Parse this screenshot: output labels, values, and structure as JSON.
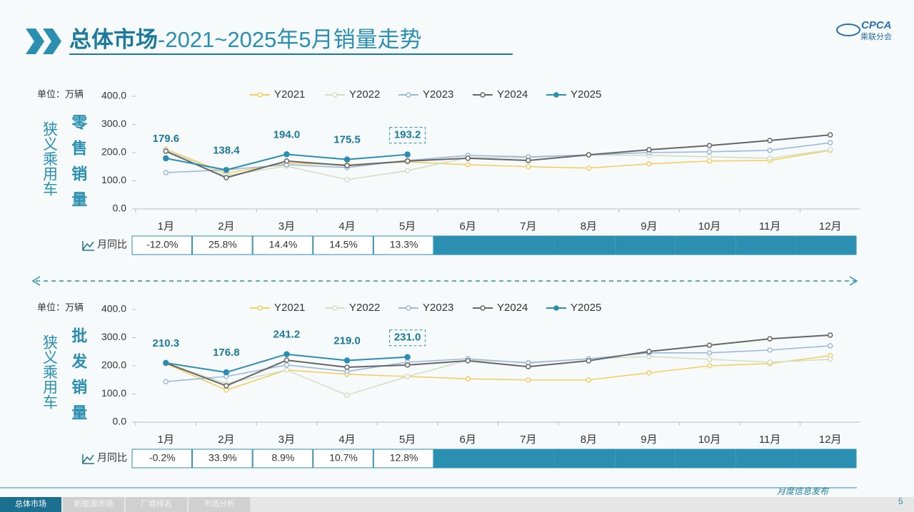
{
  "header": {
    "title_main": "总体市场",
    "title_rest": "-2021~2025年5月销量走势",
    "logo": "CPCA",
    "logo_sub": "乘联分会"
  },
  "chart_data": [
    {
      "type": "line",
      "unit_label": "单位：万辆",
      "side_label": "狭义乘用车",
      "metric_label": "零售销量",
      "categories": [
        "1月",
        "2月",
        "3月",
        "4月",
        "5月",
        "6月",
        "7月",
        "8月",
        "9月",
        "10月",
        "11月",
        "12月"
      ],
      "ylim": [
        0,
        400
      ],
      "yticks": [
        {
          "value": 0,
          "label": "0.0"
        },
        {
          "value": 100,
          "label": "100.0"
        },
        {
          "value": 200,
          "label": "200.0"
        },
        {
          "value": 300,
          "label": "300.0"
        },
        {
          "value": 400,
          "label": "400.0"
        }
      ],
      "series": [
        {
          "name": "Y2021",
          "color": "#f3cf63",
          "values": [
            212,
            127,
            162,
            157,
            167,
            157,
            150,
            145,
            160,
            170,
            172,
            208
          ]
        },
        {
          "name": "Y2022",
          "color": "#d3dfc4",
          "values": [
            210,
            119,
            152,
            104,
            136,
            182,
            182,
            192,
            190,
            185,
            180,
            210
          ]
        },
        {
          "name": "Y2023",
          "color": "#9db8dc",
          "values": [
            129,
            139,
            157,
            147,
            172,
            190,
            185,
            192,
            200,
            203,
            208,
            235
          ]
        },
        {
          "name": "Y2024",
          "color": "#666666",
          "values": [
            205,
            111,
            170,
            154,
            170,
            180,
            172,
            192,
            210,
            225,
            243,
            263
          ]
        },
        {
          "name": "Y2025",
          "color": "#2b8db0",
          "values": [
            179.6,
            138.4,
            194.0,
            175.5,
            193.2,
            null,
            null,
            null,
            null,
            null,
            null,
            null
          ],
          "value_labels": [
            "179.6",
            "138.4",
            "194.0",
            "175.5",
            "193.2",
            null,
            null,
            null,
            null,
            null,
            null,
            null
          ]
        }
      ],
      "yoy_label": "月同比",
      "yoy": [
        "-12.0%",
        "25.8%",
        "14.4%",
        "14.5%",
        "13.3%"
      ]
    },
    {
      "type": "line",
      "unit_label": "单位：万辆",
      "side_label": "狭义乘用车",
      "metric_label": "批发销量",
      "categories": [
        "1月",
        "2月",
        "3月",
        "4月",
        "5月",
        "6月",
        "7月",
        "8月",
        "9月",
        "10月",
        "11月",
        "12月"
      ],
      "ylim": [
        0,
        400
      ],
      "yticks": [
        {
          "value": 0,
          "label": "0.0"
        },
        {
          "value": 100,
          "label": "100.0"
        },
        {
          "value": 200,
          "label": "200.0"
        },
        {
          "value": 300,
          "label": "300.0"
        },
        {
          "value": 400,
          "label": "400.0"
        }
      ],
      "series": [
        {
          "name": "Y2021",
          "color": "#f3cf63",
          "values": [
            208,
            114,
            185,
            170,
            162,
            154,
            150,
            150,
            175,
            200,
            208,
            236
          ]
        },
        {
          "name": "Y2022",
          "color": "#d3dfc4",
          "values": [
            210,
            137,
            185,
            96,
            162,
            220,
            213,
            225,
            233,
            223,
            213,
            223
          ]
        },
        {
          "name": "Y2023",
          "color": "#9db8dc",
          "values": [
            144,
            162,
            203,
            180,
            213,
            225,
            210,
            225,
            246,
            246,
            256,
            271
          ]
        },
        {
          "name": "Y2024",
          "color": "#666666",
          "values": [
            210,
            129,
            220,
            195,
            203,
            218,
            197,
            218,
            251,
            273,
            296,
            309
          ]
        },
        {
          "name": "Y2025",
          "color": "#2b8db0",
          "values": [
            210.3,
            176.8,
            241.2,
            219.0,
            231.0,
            null,
            null,
            null,
            null,
            null,
            null,
            null
          ],
          "value_labels": [
            "210.3",
            "176.8",
            "241.2",
            "219.0",
            "231.0",
            null,
            null,
            null,
            null,
            null,
            null,
            null
          ]
        }
      ],
      "yoy_label": "月同比",
      "yoy": [
        "-0.2%",
        "33.9%",
        "8.9%",
        "10.7%",
        "12.8%"
      ]
    }
  ],
  "footer": {
    "tabs": [
      "总体市场",
      "新能源市场",
      "厂商排名",
      "市场分析"
    ],
    "note": "月度信息发布",
    "page": "5"
  }
}
